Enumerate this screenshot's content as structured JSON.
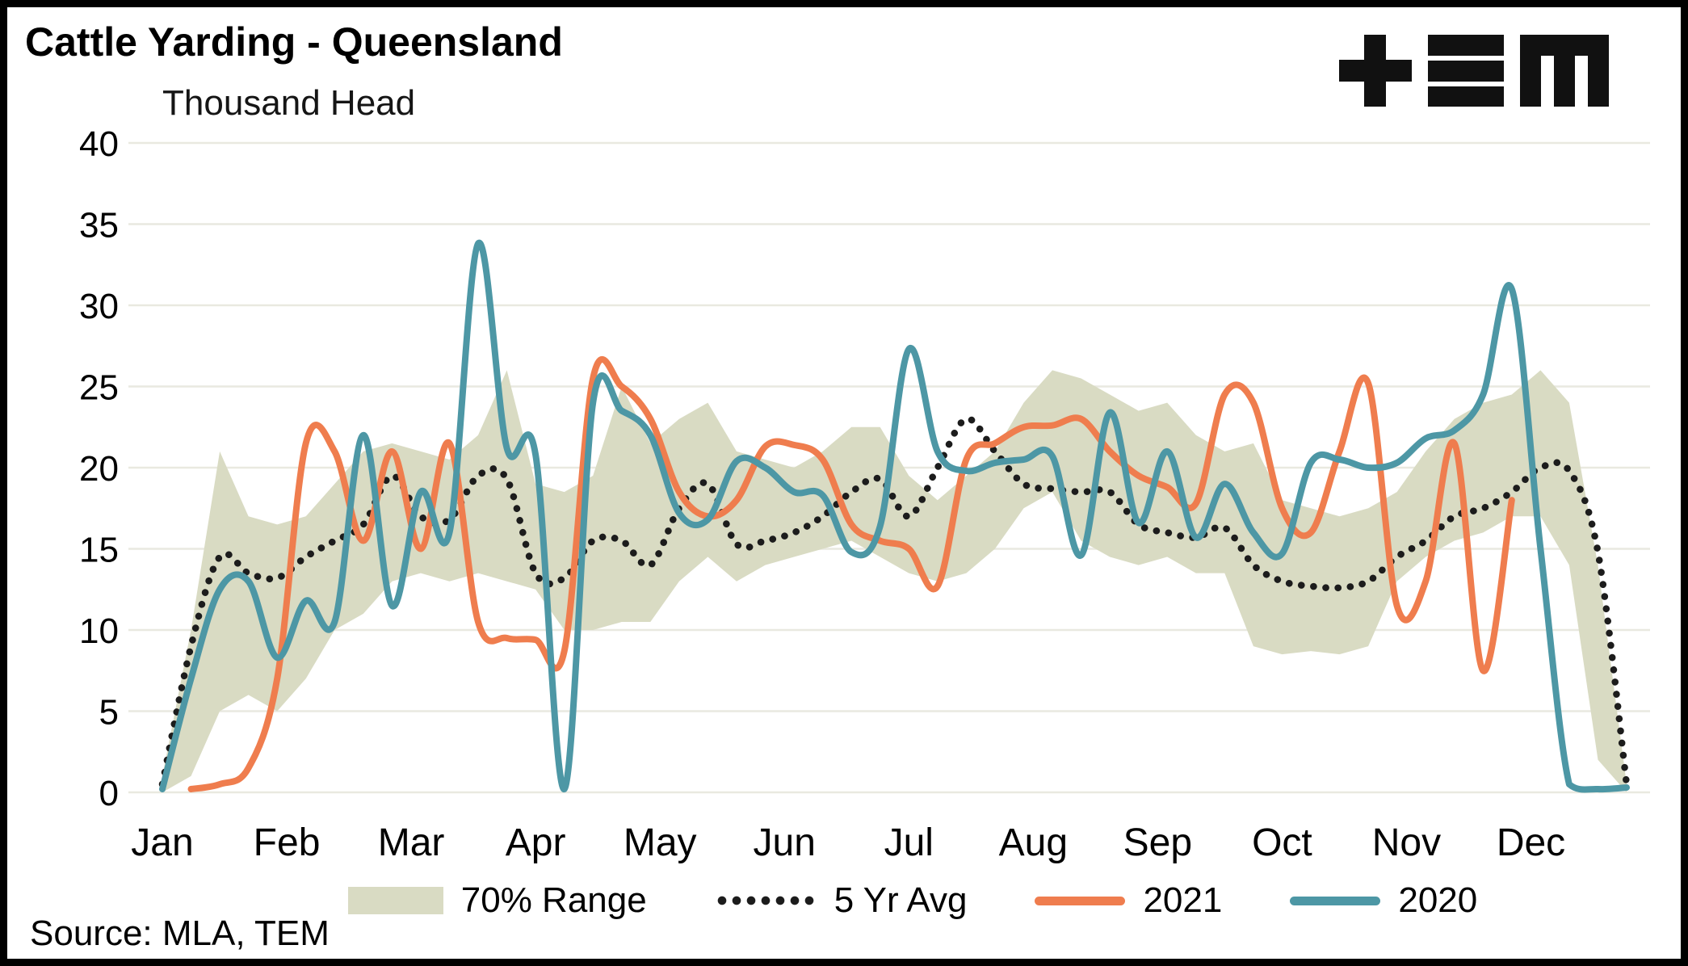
{
  "title": "Cattle Yarding - Queensland",
  "unit_label": "Thousand Head",
  "source": "Source: MLA, TEM",
  "logo_name": "TEM logo",
  "legend": {
    "items": [
      {
        "label": "70% Range",
        "swatch": "band"
      },
      {
        "label": "5 Yr Avg",
        "swatch": "dotted"
      },
      {
        "label": "2021",
        "swatch": "line"
      },
      {
        "label": "2020",
        "swatch": "line"
      }
    ]
  },
  "chart_data": {
    "type": "line",
    "title": "Cattle Yarding - Queensland",
    "ylabel": "Thousand Head",
    "x_unit": "weekly observations, Jan to Dec",
    "categories_months": [
      "Jan",
      "Feb",
      "Mar",
      "Apr",
      "May",
      "Jun",
      "Jul",
      "Aug",
      "Sep",
      "Oct",
      "Nov",
      "Dec"
    ],
    "y_ticks": [
      0,
      5,
      10,
      15,
      20,
      25,
      30,
      35,
      40
    ],
    "ylim": [
      0,
      40
    ],
    "grid": true,
    "legend_position": "bottom",
    "colors": {
      "band": "#d9dbc3",
      "avg": "#1c1c1c",
      "y2021": "#ef7d4e",
      "y2020": "#4d97a5",
      "grid": "#e9e9e0",
      "text": "#000000"
    },
    "band": {
      "name": "70% Range",
      "color": "#d9dbc3",
      "lower": [
        0,
        1,
        5,
        6,
        5,
        7,
        10,
        11,
        13,
        13.5,
        13,
        13.5,
        13,
        12.5,
        10,
        10,
        10.5,
        10.5,
        13,
        14.5,
        13,
        14,
        14.5,
        15,
        15.5,
        14.5,
        13.5,
        13,
        13.5,
        15,
        17.5,
        18.5,
        15.5,
        14.5,
        14,
        14.5,
        13.5,
        13.5,
        9,
        8.5,
        8.7,
        8.5,
        9,
        13,
        14.5,
        15.5,
        16,
        17,
        17,
        14,
        2,
        0
      ],
      "upper": [
        1,
        10,
        21,
        17,
        16.5,
        17,
        19,
        21,
        21.5,
        21,
        20.5,
        22,
        26,
        19,
        18.5,
        19.5,
        25,
        21.5,
        23,
        24,
        21,
        20.5,
        20,
        21,
        22.5,
        22.5,
        19.5,
        18,
        19.5,
        21,
        24,
        26,
        25.5,
        24.5,
        23.5,
        24,
        22,
        21,
        21.5,
        18,
        17.5,
        17,
        17.5,
        18.5,
        21,
        23,
        24,
        24.5,
        26,
        24,
        14,
        0.5
      ]
    },
    "series": [
      {
        "name": "5 Yr Avg",
        "style": "dotted",
        "color": "#1c1c1c",
        "values": [
          0.5,
          9,
          14.5,
          13.5,
          13.2,
          14.5,
          15.5,
          16.5,
          19.5,
          17,
          16.8,
          19.5,
          19.3,
          13.5,
          13.2,
          15.5,
          15.5,
          14,
          17.5,
          19,
          15.3,
          15.5,
          16,
          17,
          18.5,
          19.3,
          17,
          20,
          23,
          21,
          19,
          18.7,
          18.5,
          18.5,
          16.5,
          16,
          15.7,
          16.3,
          14,
          13,
          12.7,
          12.6,
          13,
          14.5,
          15.5,
          17,
          17.5,
          18.5,
          20,
          19.8,
          14.8,
          0.5
        ]
      },
      {
        "name": "2021",
        "style": "solid",
        "color": "#ef7d4e",
        "values": [
          null,
          0.2,
          0.5,
          1.5,
          7,
          21.5,
          21,
          15.5,
          21,
          15,
          21.5,
          10.5,
          9.5,
          9.4,
          8.7,
          25.5,
          25,
          23,
          18.5,
          17,
          18,
          21.3,
          21.4,
          20.5,
          16.5,
          15.5,
          15,
          12.7,
          20.5,
          21.5,
          22.5,
          22.6,
          23,
          21,
          19.5,
          18.8,
          17.8,
          24.5,
          24,
          17.5,
          16,
          21,
          25.2,
          11.5,
          13,
          21.5,
          7.5,
          18,
          null,
          null,
          null,
          null
        ]
      },
      {
        "name": "2020",
        "style": "solid",
        "color": "#4d97a5",
        "values": [
          0.2,
          7,
          12.5,
          13,
          8.3,
          11.8,
          10.5,
          22,
          11.5,
          18.5,
          16,
          33.8,
          21.2,
          20.8,
          0.2,
          24,
          23.5,
          22,
          17.2,
          16.8,
          20.4,
          20,
          18.5,
          18.3,
          14.8,
          16.4,
          27.3,
          21,
          19.8,
          20.3,
          20.5,
          20.7,
          14.6,
          23.4,
          16.6,
          21,
          15.7,
          19,
          16,
          14.7,
          20.3,
          20.5,
          20,
          20.3,
          21.8,
          22.3,
          24.5,
          31,
          15,
          0.5,
          0.2,
          0.3
        ]
      }
    ]
  }
}
